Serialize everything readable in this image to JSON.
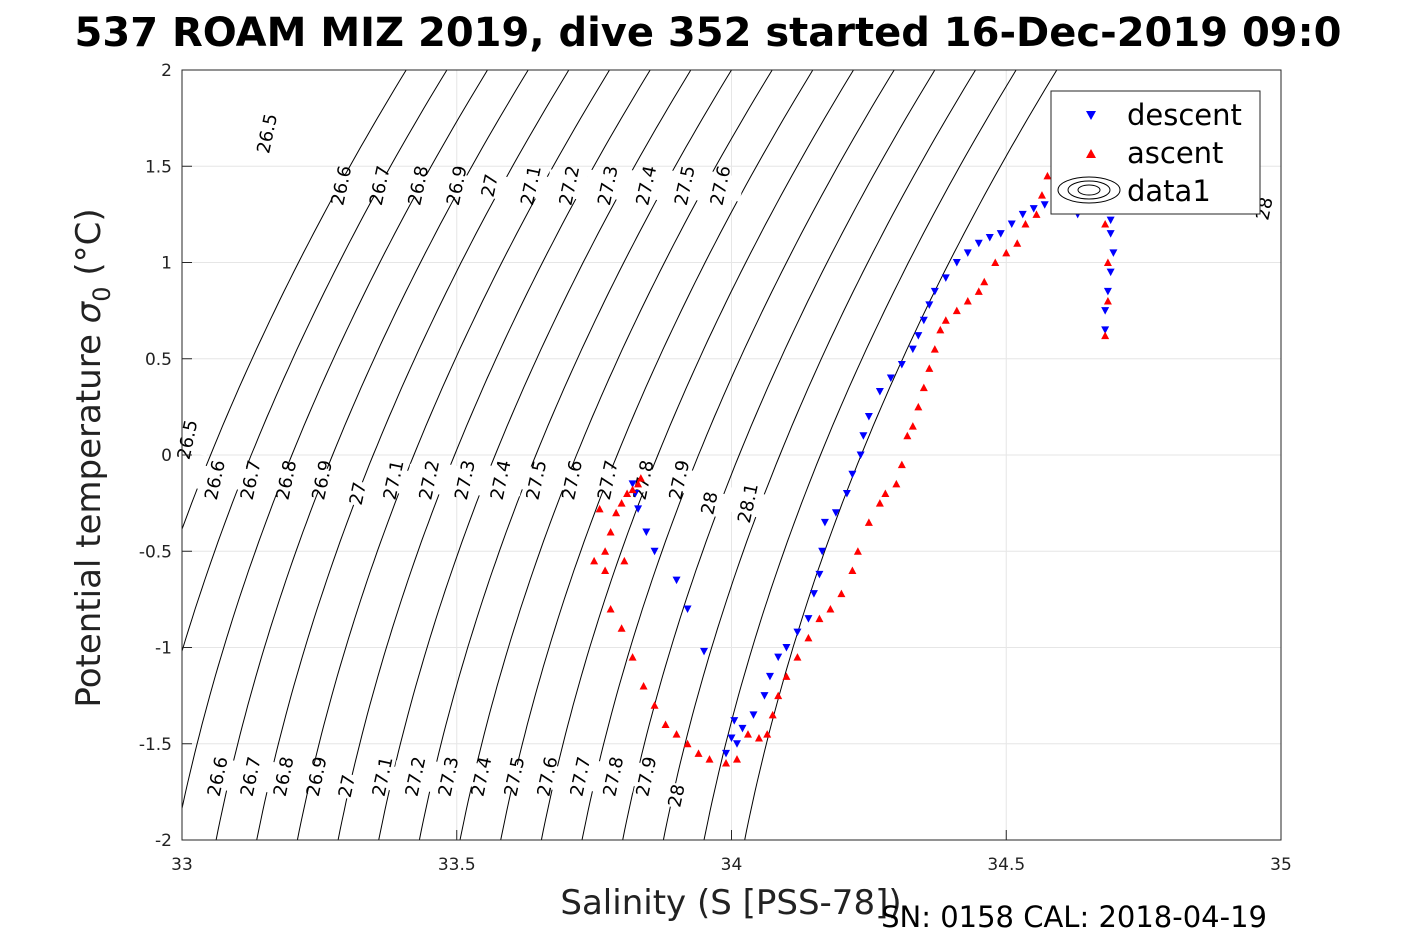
{
  "chart_data": {
    "type": "scatter",
    "title": "537 ROAM MIZ 2019, dive 352 started 16-Dec-2019 09:0",
    "xlabel": "Salinity (S [PSS-78])",
    "ylabel_main": "Potential temperature ",
    "ylabel_sigma": "σ",
    "ylabel_sub": "0",
    "ylabel_unit": " (°C)",
    "footer": "SN: 0158  CAL: 2018-04-19",
    "xlim": [
      33,
      35
    ],
    "ylim": [
      -2,
      2
    ],
    "x_ticks": [
      33,
      33.5,
      34,
      34.5,
      35
    ],
    "x_tick_labels": [
      "33",
      "33.5",
      "34",
      "34.5",
      "35"
    ],
    "y_ticks": [
      -2,
      -1.5,
      -1,
      -0.5,
      0,
      0.5,
      1,
      1.5,
      2
    ],
    "y_tick_labels": [
      "-2",
      "-1.5",
      "-1",
      "-0.5",
      "0",
      "0.5",
      "1",
      "1.5",
      "2"
    ],
    "grid": true,
    "legend_position": "top-right",
    "legend": [
      {
        "label": "descent",
        "marker": "triangle-down",
        "color": "#0000ff"
      },
      {
        "label": "ascent",
        "marker": "triangle-up",
        "color": "#ff0000"
      },
      {
        "label": "data1",
        "marker": "contour"
      }
    ],
    "isopycnals": [
      26.5,
      26.6,
      26.7,
      26.8,
      26.9,
      27.0,
      27.1,
      27.2,
      27.3,
      27.4,
      27.5,
      27.6,
      27.7,
      27.8,
      27.9,
      28.0,
      28.1
    ],
    "contour_labels": [
      {
        "text": "26.5",
        "x": 33.155,
        "y": 1.67
      },
      {
        "text": "26.6",
        "x": 33.29,
        "y": 1.4
      },
      {
        "text": "26.7",
        "x": 33.36,
        "y": 1.4
      },
      {
        "text": "26.8",
        "x": 33.43,
        "y": 1.4
      },
      {
        "text": "26.9",
        "x": 33.5,
        "y": 1.4
      },
      {
        "text": "27",
        "x": 33.56,
        "y": 1.4
      },
      {
        "text": "27.1",
        "x": 33.635,
        "y": 1.4
      },
      {
        "text": "27.2",
        "x": 33.705,
        "y": 1.4
      },
      {
        "text": "27.3",
        "x": 33.775,
        "y": 1.4
      },
      {
        "text": "27.4",
        "x": 33.845,
        "y": 1.4
      },
      {
        "text": "27.5",
        "x": 33.915,
        "y": 1.4
      },
      {
        "text": "27.6",
        "x": 33.98,
        "y": 1.4
      },
      {
        "text": "28",
        "x": 34.97,
        "y": 1.28
      },
      {
        "text": "26.5",
        "x": 33.01,
        "y": 0.08
      },
      {
        "text": "26.6",
        "x": 33.06,
        "y": -0.13
      },
      {
        "text": "26.7",
        "x": 33.125,
        "y": -0.13
      },
      {
        "text": "26.8",
        "x": 33.19,
        "y": -0.13
      },
      {
        "text": "26.9",
        "x": 33.255,
        "y": -0.13
      },
      {
        "text": "27",
        "x": 33.32,
        "y": -0.2
      },
      {
        "text": "27.1",
        "x": 33.385,
        "y": -0.13
      },
      {
        "text": "27.2",
        "x": 33.45,
        "y": -0.13
      },
      {
        "text": "27.3",
        "x": 33.515,
        "y": -0.13
      },
      {
        "text": "27.4",
        "x": 33.58,
        "y": -0.13
      },
      {
        "text": "27.5",
        "x": 33.645,
        "y": -0.13
      },
      {
        "text": "27.6",
        "x": 33.71,
        "y": -0.13
      },
      {
        "text": "27.7",
        "x": 33.775,
        "y": -0.13
      },
      {
        "text": "27.8",
        "x": 33.84,
        "y": -0.13
      },
      {
        "text": "27.9",
        "x": 33.905,
        "y": -0.13
      },
      {
        "text": "28",
        "x": 33.96,
        "y": -0.25
      },
      {
        "text": "28.1",
        "x": 34.03,
        "y": -0.25
      },
      {
        "text": "26.6",
        "x": 33.065,
        "y": -1.67
      },
      {
        "text": "26.7",
        "x": 33.125,
        "y": -1.67
      },
      {
        "text": "26.8",
        "x": 33.185,
        "y": -1.67
      },
      {
        "text": "26.9",
        "x": 33.245,
        "y": -1.67
      },
      {
        "text": "27",
        "x": 33.3,
        "y": -1.72
      },
      {
        "text": "27.1",
        "x": 33.365,
        "y": -1.67
      },
      {
        "text": "27.2",
        "x": 33.425,
        "y": -1.67
      },
      {
        "text": "27.3",
        "x": 33.485,
        "y": -1.67
      },
      {
        "text": "27.4",
        "x": 33.545,
        "y": -1.67
      },
      {
        "text": "27.5",
        "x": 33.605,
        "y": -1.67
      },
      {
        "text": "27.6",
        "x": 33.665,
        "y": -1.67
      },
      {
        "text": "27.7",
        "x": 33.725,
        "y": -1.67
      },
      {
        "text": "27.8",
        "x": 33.785,
        "y": -1.67
      },
      {
        "text": "27.9",
        "x": 33.845,
        "y": -1.67
      },
      {
        "text": "28",
        "x": 33.9,
        "y": -1.77
      }
    ],
    "series": [
      {
        "name": "descent",
        "marker": "triangle-down",
        "color": "#0000ff",
        "points": [
          [
            34.69,
            1.22
          ],
          [
            34.69,
            1.15
          ],
          [
            34.695,
            1.05
          ],
          [
            34.69,
            0.95
          ],
          [
            34.685,
            0.85
          ],
          [
            34.68,
            0.75
          ],
          [
            34.68,
            0.65
          ],
          [
            34.63,
            1.25
          ],
          [
            34.6,
            1.32
          ],
          [
            34.57,
            1.3
          ],
          [
            34.55,
            1.28
          ],
          [
            34.53,
            1.25
          ],
          [
            34.51,
            1.2
          ],
          [
            34.49,
            1.15
          ],
          [
            34.47,
            1.13
          ],
          [
            34.45,
            1.1
          ],
          [
            34.43,
            1.05
          ],
          [
            34.41,
            1.0
          ],
          [
            34.39,
            0.92
          ],
          [
            34.37,
            0.85
          ],
          [
            34.36,
            0.78
          ],
          [
            34.35,
            0.7
          ],
          [
            34.34,
            0.62
          ],
          [
            34.33,
            0.55
          ],
          [
            34.31,
            0.47
          ],
          [
            34.29,
            0.4
          ],
          [
            34.27,
            0.33
          ],
          [
            34.25,
            0.2
          ],
          [
            34.24,
            0.1
          ],
          [
            34.235,
            0.0
          ],
          [
            34.22,
            -0.1
          ],
          [
            34.21,
            -0.2
          ],
          [
            34.19,
            -0.3
          ],
          [
            34.17,
            -0.35
          ],
          [
            34.165,
            -0.5
          ],
          [
            34.16,
            -0.62
          ],
          [
            34.15,
            -0.72
          ],
          [
            34.14,
            -0.85
          ],
          [
            34.12,
            -0.92
          ],
          [
            34.1,
            -1.0
          ],
          [
            34.085,
            -1.05
          ],
          [
            34.07,
            -1.15
          ],
          [
            34.06,
            -1.25
          ],
          [
            34.04,
            -1.35
          ],
          [
            34.02,
            -1.42
          ],
          [
            34.0,
            -1.47
          ],
          [
            33.99,
            -1.55
          ],
          [
            33.95,
            -1.02
          ],
          [
            33.92,
            -0.8
          ],
          [
            33.9,
            -0.65
          ],
          [
            33.86,
            -0.5
          ],
          [
            33.845,
            -0.4
          ],
          [
            33.83,
            -0.28
          ],
          [
            33.825,
            -0.2
          ],
          [
            33.82,
            -0.15
          ],
          [
            34.005,
            -1.38
          ],
          [
            34.01,
            -1.5
          ]
        ]
      },
      {
        "name": "ascent",
        "marker": "triangle-up",
        "color": "#ff0000",
        "points": [
          [
            34.68,
            0.62
          ],
          [
            34.685,
            0.8
          ],
          [
            34.685,
            1.0
          ],
          [
            34.68,
            1.2
          ],
          [
            34.67,
            1.3
          ],
          [
            34.575,
            1.45
          ],
          [
            34.565,
            1.35
          ],
          [
            34.555,
            1.25
          ],
          [
            34.535,
            1.2
          ],
          [
            34.52,
            1.1
          ],
          [
            34.5,
            1.05
          ],
          [
            34.48,
            1.0
          ],
          [
            34.46,
            0.9
          ],
          [
            34.45,
            0.85
          ],
          [
            34.43,
            0.8
          ],
          [
            34.41,
            0.75
          ],
          [
            34.39,
            0.7
          ],
          [
            34.38,
            0.65
          ],
          [
            34.37,
            0.55
          ],
          [
            34.36,
            0.45
          ],
          [
            34.35,
            0.35
          ],
          [
            34.34,
            0.25
          ],
          [
            34.33,
            0.15
          ],
          [
            34.32,
            0.1
          ],
          [
            34.31,
            -0.05
          ],
          [
            34.3,
            -0.15
          ],
          [
            34.28,
            -0.2
          ],
          [
            34.27,
            -0.25
          ],
          [
            34.25,
            -0.35
          ],
          [
            34.23,
            -0.5
          ],
          [
            34.22,
            -0.6
          ],
          [
            34.2,
            -0.72
          ],
          [
            34.18,
            -0.8
          ],
          [
            34.16,
            -0.85
          ],
          [
            34.14,
            -0.95
          ],
          [
            34.12,
            -1.05
          ],
          [
            34.1,
            -1.15
          ],
          [
            34.085,
            -1.25
          ],
          [
            34.075,
            -1.35
          ],
          [
            34.065,
            -1.45
          ],
          [
            34.05,
            -1.47
          ],
          [
            34.03,
            -1.45
          ],
          [
            34.01,
            -1.58
          ],
          [
            33.99,
            -1.6
          ],
          [
            33.96,
            -1.58
          ],
          [
            33.94,
            -1.55
          ],
          [
            33.92,
            -1.5
          ],
          [
            33.9,
            -1.45
          ],
          [
            33.88,
            -1.4
          ],
          [
            33.86,
            -1.3
          ],
          [
            33.84,
            -1.2
          ],
          [
            33.82,
            -1.05
          ],
          [
            33.8,
            -0.9
          ],
          [
            33.78,
            -0.8
          ],
          [
            33.77,
            -0.6
          ],
          [
            33.77,
            -0.5
          ],
          [
            33.78,
            -0.4
          ],
          [
            33.79,
            -0.3
          ],
          [
            33.8,
            -0.25
          ],
          [
            33.81,
            -0.2
          ],
          [
            33.82,
            -0.18
          ],
          [
            33.83,
            -0.15
          ],
          [
            33.835,
            -0.12
          ],
          [
            33.805,
            -0.55
          ],
          [
            33.75,
            -0.55
          ],
          [
            33.76,
            -0.28
          ]
        ]
      }
    ]
  }
}
